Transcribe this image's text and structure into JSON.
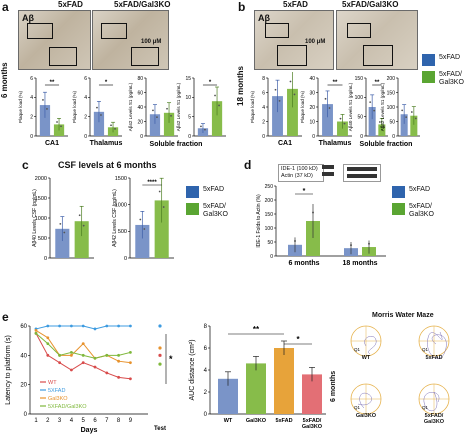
{
  "colors": {
    "blue": "#7a94c8",
    "green": "#87bc4a",
    "blue_dark": "#3d5ea8",
    "orange": "#e7922d",
    "red": "#d84b4b",
    "legend_blue": "#2f64ad",
    "legend_green": "#5aa532"
  },
  "panel_a": {
    "letter": "a",
    "age": "6 months",
    "ab_label": "Aβ",
    "col1": "5xFAD",
    "col2": "5xFAD/Gal3KO",
    "scale": "100 μM",
    "charts": [
      {
        "title": "CA1",
        "ylabel": "Plaque load (%)",
        "ticks": [
          "0",
          "2",
          "4",
          "6"
        ],
        "ymax": 6,
        "values": [
          3.2,
          1.2
        ],
        "sig": "**"
      },
      {
        "title": "Thalamus",
        "ylabel": "Plaque load (%)",
        "ticks": [
          "0",
          "2",
          "4",
          "6"
        ],
        "ymax": 6,
        "values": [
          2.5,
          0.9
        ],
        "sig": "*"
      },
      {
        "title": "",
        "ylabel": "Aβ42 Levels S1 (pg/mL)",
        "ticks": [
          "0",
          "20",
          "40",
          "60",
          "80"
        ],
        "ymax": 80,
        "values": [
          30,
          32
        ],
        "sig": ""
      },
      {
        "title": "",
        "ylabel": "Aβ42 Levels S1 (pg/mL)",
        "ticks": [
          "0",
          "5",
          "10",
          "15"
        ],
        "ymax": 15,
        "values": [
          2,
          9
        ],
        "sig": "*"
      }
    ],
    "soluble_label": "Soluble fraction"
  },
  "panel_b": {
    "letter": "b",
    "age": "18 months",
    "ab_label": "Aβ",
    "col1": "5xFAD",
    "col2": "5xFAD/Gal3KO",
    "scale": "100 μM",
    "charts": [
      {
        "title": "CA1",
        "ylabel": "Plaque load (%)",
        "ticks": [
          "0",
          "2",
          "4",
          "6",
          "8"
        ],
        "ymax": 8,
        "values": [
          5.5,
          6.5
        ],
        "sig": ""
      },
      {
        "title": "Thalamus",
        "ylabel": "Plaque load (%)",
        "ticks": [
          "0",
          "10",
          "20",
          "30",
          "40"
        ],
        "ymax": 40,
        "values": [
          22,
          10
        ],
        "sig": "**"
      },
      {
        "title": "",
        "ylabel": "Aβ40 Levels S1 (pg/mL)",
        "ticks": [
          "0",
          "50",
          "100",
          "150"
        ],
        "ymax": 150,
        "values": [
          75,
          30
        ],
        "sig": "**"
      },
      {
        "title": "",
        "ylabel": "Aβ42 Levels S1 (pg/mL)",
        "ticks": [
          "0",
          "50",
          "100",
          "150",
          "200"
        ],
        "ymax": 200,
        "values": [
          75,
          70
        ],
        "sig": ""
      }
    ],
    "soluble_label": "Soluble fraction",
    "legend": [
      "5xFAD",
      "5xFAD/\nGal3KO"
    ]
  },
  "panel_c": {
    "letter": "c",
    "title": "CSF levels at 6 months",
    "charts": [
      {
        "ylabel": "Aβ40 Levels CSF (pg/mL)",
        "ticks": [
          "0",
          "500",
          "1000",
          "1500",
          "2000"
        ],
        "ymax": 2000,
        "values": [
          730,
          920
        ],
        "sig": ""
      },
      {
        "ylabel": "Aβ42 Levels CSF (pg/mL)",
        "ticks": [
          "0",
          "500",
          "1000",
          "1500"
        ],
        "ymax": 1500,
        "values": [
          620,
          1080
        ],
        "sig": "****"
      }
    ],
    "legend": [
      "5xFAD",
      "5xFAD/\nGal3KO"
    ]
  },
  "panel_d": {
    "letter": "d",
    "blot1": "IDE-1 (100 kD)",
    "blot2": "Actin (37 kD)",
    "ylabel": "IDE-1 Folds to Actin (%)",
    "ticks": [
      "0",
      "50",
      "100",
      "150",
      "200",
      "250"
    ],
    "ymax": 250,
    "groups": [
      {
        "label": "6 months",
        "values": [
          40,
          125
        ],
        "sig": "*"
      },
      {
        "label": "18 months",
        "values": [
          28,
          32
        ],
        "sig": ""
      }
    ],
    "legend": [
      "5xFAD",
      "5xFAD/\nGal3KO"
    ]
  },
  "panel_e": {
    "letter": "e",
    "line": {
      "ylabel": "Latency to platform (s)",
      "xlabel": "Days",
      "test_label": "Test",
      "sig": "*",
      "yticks": [
        "0",
        "20",
        "40",
        "60"
      ],
      "xticks": [
        "1",
        "2",
        "3",
        "4",
        "5",
        "6",
        "7",
        "8",
        "9"
      ],
      "ymax": 60,
      "series": [
        {
          "name": "WT",
          "color": "#d84b4b",
          "values": [
            55,
            40,
            35,
            30,
            35,
            32,
            28,
            25,
            24
          ],
          "test": 40
        },
        {
          "name": "5XFAD",
          "color": "#3d9be0",
          "values": [
            58,
            60,
            60,
            60,
            60,
            58,
            60,
            60,
            60
          ],
          "test": 60
        },
        {
          "name": "Gal3KO",
          "color": "#e7922d",
          "values": [
            57,
            52,
            40,
            40,
            48,
            38,
            40,
            36,
            35
          ],
          "test": 45
        },
        {
          "name": "5XFAD/Gal3KO",
          "color": "#7fb83b",
          "values": [
            55,
            48,
            40,
            42,
            40,
            38,
            40,
            40,
            42
          ],
          "test": 34
        }
      ]
    },
    "auc": {
      "ylabel": "AUC distance (cm²)",
      "ticks": [
        "0",
        "2",
        "4",
        "6",
        "8"
      ],
      "ymax": 8,
      "bars": [
        {
          "label": "WT",
          "value": 3.2,
          "color": "#7a94c8"
        },
        {
          "label": "Gal3KO",
          "value": 4.6,
          "color": "#87bc4a"
        },
        {
          "label": "5xFAD",
          "value": 6.0,
          "color": "#e7a33a"
        },
        {
          "label": "5xFAD/\nGal3KO",
          "value": 3.6,
          "color": "#e36f75"
        }
      ],
      "sig1": "**",
      "sig2": "*"
    },
    "mwm": {
      "title": "Morris Water Maze",
      "age": "6 months",
      "cells": [
        {
          "label": "WT",
          "q": "Q1"
        },
        {
          "label": "5xFAD",
          "q": "Q1"
        },
        {
          "label": "Gal3KO",
          "q": "Q1"
        },
        {
          "label": "5xFAD/\nGal3KO",
          "q": "Q1"
        }
      ]
    }
  }
}
